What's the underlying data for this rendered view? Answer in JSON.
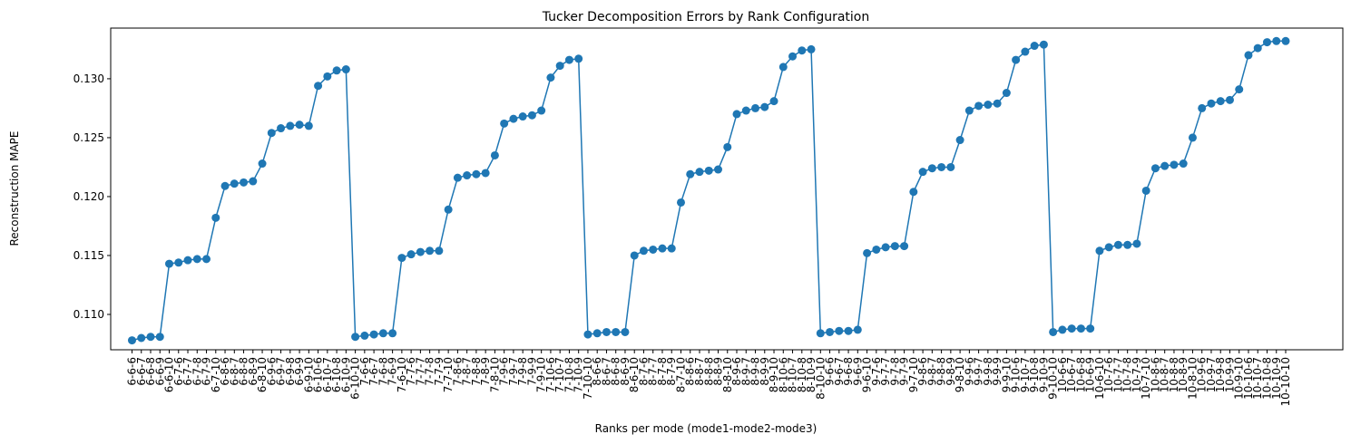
{
  "chart_data": {
    "type": "line",
    "title": "Tucker Decomposition Errors by Rank Configuration",
    "xlabel": "Ranks per mode (mode1-mode2-mode3)",
    "ylabel": "Reconstruction MAPE",
    "ylim": [
      0.107,
      0.1343
    ],
    "yticks": [
      0.11,
      0.115,
      0.12,
      0.125,
      0.13
    ],
    "ytick_labels": [
      "0.110",
      "0.115",
      "0.120",
      "0.125",
      "0.130"
    ],
    "grid": false,
    "marker": "circle",
    "colors": {
      "line": "#1f77b4",
      "marker": "#1f77b4"
    },
    "categories": [
      "6-6-6",
      "6-6-7",
      "6-6-8",
      "6-6-9",
      "6-6-10",
      "6-7-6",
      "6-7-7",
      "6-7-8",
      "6-7-9",
      "6-7-10",
      "6-8-6",
      "6-8-7",
      "6-8-8",
      "6-8-9",
      "6-8-10",
      "6-9-6",
      "6-9-7",
      "6-9-8",
      "6-9-9",
      "6-9-10",
      "6-10-6",
      "6-10-7",
      "6-10-8",
      "6-10-9",
      "6-10-10",
      "7-6-6",
      "7-6-7",
      "7-6-8",
      "7-6-9",
      "7-6-10",
      "7-7-6",
      "7-7-7",
      "7-7-8",
      "7-7-9",
      "7-7-10",
      "7-8-6",
      "7-8-7",
      "7-8-8",
      "7-8-9",
      "7-8-10",
      "7-9-6",
      "7-9-7",
      "7-9-8",
      "7-9-9",
      "7-9-10",
      "7-10-6",
      "7-10-7",
      "7-10-8",
      "7-10-9",
      "7-10-10",
      "8-6-6",
      "8-6-7",
      "8-6-8",
      "8-6-9",
      "8-6-10",
      "8-7-6",
      "8-7-7",
      "8-7-8",
      "8-7-9",
      "8-7-10",
      "8-8-6",
      "8-8-7",
      "8-8-8",
      "8-8-9",
      "8-8-10",
      "8-9-6",
      "8-9-7",
      "8-9-8",
      "8-9-9",
      "8-9-10",
      "8-10-6",
      "8-10-7",
      "8-10-8",
      "8-10-9",
      "8-10-10",
      "9-6-6",
      "9-6-7",
      "9-6-8",
      "9-6-9",
      "9-6-10",
      "9-7-6",
      "9-7-7",
      "9-7-8",
      "9-7-9",
      "9-7-10",
      "9-8-6",
      "9-8-7",
      "9-8-8",
      "9-8-9",
      "9-8-10",
      "9-9-6",
      "9-9-7",
      "9-9-8",
      "9-9-9",
      "9-9-10",
      "9-10-6",
      "9-10-7",
      "9-10-8",
      "9-10-9",
      "9-10-10",
      "10-6-6",
      "10-6-7",
      "10-6-8",
      "10-6-9",
      "10-6-10",
      "10-7-6",
      "10-7-7",
      "10-7-8",
      "10-7-9",
      "10-7-10",
      "10-8-6",
      "10-8-7",
      "10-8-8",
      "10-8-9",
      "10-8-10",
      "10-9-6",
      "10-9-7",
      "10-9-8",
      "10-9-9",
      "10-9-10",
      "10-10-6",
      "10-10-7",
      "10-10-8",
      "10-10-9",
      "10-10-10"
    ],
    "values": [
      0.1078,
      0.108,
      0.1081,
      0.1081,
      0.1143,
      0.1144,
      0.1146,
      0.1147,
      0.1147,
      0.1182,
      0.1209,
      0.1211,
      0.1212,
      0.1213,
      0.1228,
      0.1254,
      0.1258,
      0.126,
      0.1261,
      0.126,
      0.1294,
      0.1302,
      0.1307,
      0.1308,
      0.1081,
      0.1082,
      0.1083,
      0.1084,
      0.1084,
      0.1148,
      0.1151,
      0.1153,
      0.1154,
      0.1154,
      0.1189,
      0.1216,
      0.1218,
      0.1219,
      0.122,
      0.1235,
      0.1262,
      0.1266,
      0.1268,
      0.1269,
      0.1273,
      0.1301,
      0.1311,
      0.1316,
      0.1317,
      0.1083,
      0.1084,
      0.1085,
      0.1085,
      0.1085,
      0.115,
      0.1154,
      0.1155,
      0.1156,
      0.1156,
      0.1195,
      0.1219,
      0.1221,
      0.1222,
      0.1223,
      0.1242,
      0.127,
      0.1273,
      0.1275,
      0.1276,
      0.1281,
      0.131,
      0.1319,
      0.1324,
      0.1325,
      0.1084,
      0.1085,
      0.1086,
      0.1086,
      0.1087,
      0.1152,
      0.1155,
      0.1157,
      0.1158,
      0.1158,
      0.1204,
      0.1221,
      0.1224,
      0.1225,
      0.1225,
      0.1248,
      0.1273,
      0.1277,
      0.1278,
      0.1279,
      0.1288,
      0.1316,
      0.1323,
      0.1328,
      0.1329,
      0.1085,
      0.1087,
      0.1088,
      0.1088,
      0.1088,
      0.1154,
      0.1157,
      0.1159,
      0.1159,
      0.116,
      0.1205,
      0.1224,
      0.1226,
      0.1227,
      0.1228,
      0.125,
      0.1275,
      0.1279,
      0.1281,
      0.1282,
      0.1291,
      0.132,
      0.1326,
      0.1331,
      0.1332,
      0.1332
    ]
  }
}
